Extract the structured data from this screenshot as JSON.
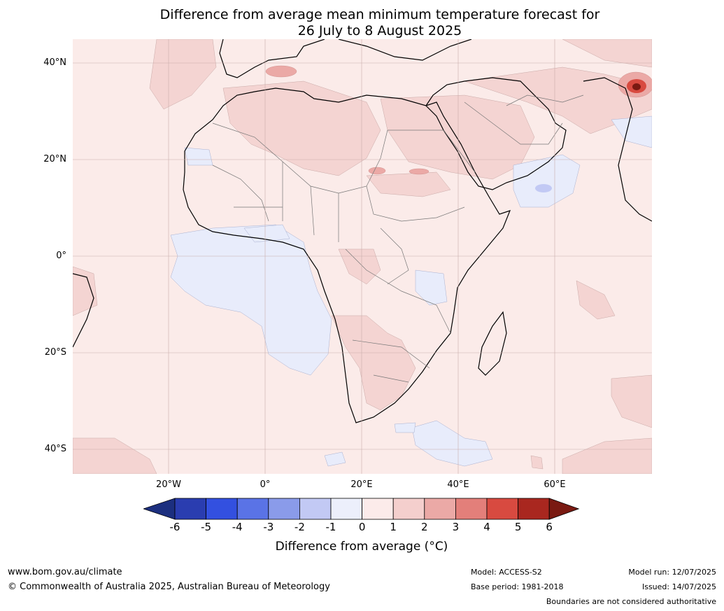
{
  "title_line1": "Difference from average mean minimum temperature forecast for",
  "title_line2": "26 July to 8 August 2025",
  "lat_labels": [
    "40°N",
    "20°N",
    "0°",
    "20°S",
    "40°S"
  ],
  "lon_labels": [
    "20°W",
    "0°",
    "20°E",
    "40°E",
    "60°E"
  ],
  "colorbar": {
    "ticks": [
      "-6",
      "-5",
      "-4",
      "-3",
      "-2",
      "-1",
      "0",
      "1",
      "2",
      "3",
      "4",
      "5",
      "6"
    ],
    "colors": [
      "#1c2f7f",
      "#2a3db0",
      "#3350e0",
      "#5a73e6",
      "#8a9bea",
      "#c2c9f4",
      "#eceffb",
      "#fcebea",
      "#f4cfcd",
      "#eba9a6",
      "#e37f7a",
      "#d84a40",
      "#a9271f",
      "#7a1a12"
    ],
    "title": "Difference from average (",
    "title_unit": "°C)"
  },
  "footer": {
    "website": "www.bom.gov.au/climate",
    "copyright": "© Commonwealth of Australia 2025, Australian Bureau of Meteorology",
    "model": "Model: ACCESS-S2",
    "base_period": "Base period: 1981-2018",
    "model_run": "Model run: 12/07/2025",
    "issued": "Issued: 14/07/2025",
    "boundaries": "Boundaries are not considered authoritative"
  }
}
